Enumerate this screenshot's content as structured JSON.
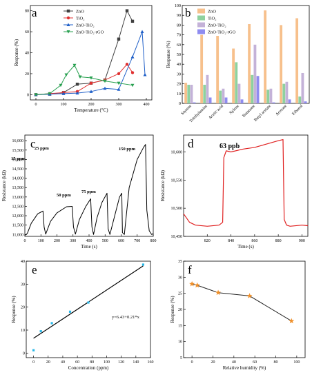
{
  "panels": {
    "a": {
      "letter": "a"
    },
    "b": {
      "letter": "b"
    },
    "c": {
      "letter": "c"
    },
    "d": {
      "letter": "d"
    },
    "e": {
      "letter": "e"
    },
    "f": {
      "letter": "f"
    }
  },
  "chart_data": [
    {
      "id": "a",
      "type": "line",
      "xlabel": "Temperature (°C)",
      "ylabel": "Response (%)",
      "xlim": [
        -20,
        420
      ],
      "ylim": [
        -5,
        85
      ],
      "xticks": [
        0,
        100,
        200,
        300,
        400
      ],
      "yticks": [
        0,
        20,
        40,
        60,
        80
      ],
      "legend_position": "top-left",
      "series": [
        {
          "name": "ZnO",
          "color": "#404040",
          "marker": "square",
          "x": [
            0,
            50,
            100,
            150,
            200,
            250,
            300,
            330,
            350
          ],
          "y": [
            0,
            0.5,
            2,
            10,
            11,
            14,
            53,
            80,
            70
          ]
        },
        {
          "name": "TiO2",
          "color": "#e03030",
          "marker": "circle",
          "x": [
            0,
            50,
            100,
            150,
            200,
            250,
            300,
            330,
            350
          ],
          "y": [
            0,
            1,
            2,
            3,
            11,
            14,
            20,
            29,
            21
          ]
        },
        {
          "name": "ZnO-TiO2",
          "color": "#2060c8",
          "marker": "triangle",
          "x": [
            0,
            50,
            100,
            150,
            200,
            250,
            300,
            350,
            385,
            395
          ],
          "y": [
            0,
            0.5,
            1,
            1.5,
            3,
            6,
            5,
            36,
            60,
            19
          ]
        },
        {
          "name": "ZnO-TiO2-rGO",
          "color": "#28a050",
          "marker": "triangle-down",
          "x": [
            0,
            50,
            90,
            110,
            140,
            160,
            200,
            250,
            300,
            350
          ],
          "y": [
            0,
            1,
            9,
            19,
            28,
            17,
            16,
            13,
            11,
            9
          ]
        }
      ]
    },
    {
      "id": "b",
      "type": "bar",
      "ylabel": "Response (%)",
      "ylim": [
        0,
        100
      ],
      "yticks": [
        0,
        10,
        20,
        30,
        40,
        50,
        60,
        70,
        80,
        90,
        100
      ],
      "legend_position": "top-left",
      "categories": [
        "Styrene",
        "Triethylamine",
        "Acetic acid",
        "Xylene",
        "Butanone",
        "Butyl acetate",
        "Acetone",
        "Ethanol"
      ],
      "series": [
        {
          "name": "ZnO",
          "color": "#f7c08c",
          "values": [
            21,
            70,
            69,
            56,
            81,
            95,
            80,
            87
          ]
        },
        {
          "name": "TiO2",
          "color": "#8fd19e",
          "values": [
            19,
            19,
            13,
            42,
            29,
            14,
            20,
            7
          ]
        },
        {
          "name": "ZnO-TiO2",
          "color": "#c4b2d8",
          "values": [
            19,
            29,
            15,
            20,
            60,
            15,
            22,
            31
          ]
        },
        {
          "name": "ZnO-TiO2-rGO",
          "color": "#8f8cf0",
          "values": [
            1,
            6,
            6,
            4,
            28,
            1,
            4,
            2
          ]
        }
      ]
    },
    {
      "id": "c",
      "type": "line",
      "xlabel": "Time (s)",
      "ylabel": "Resistance (kΩ)",
      "xlim": [
        0,
        800
      ],
      "ylim": [
        10900,
        16300
      ],
      "xticks": [
        0,
        100,
        200,
        300,
        400,
        500,
        600,
        700,
        800
      ],
      "yticks": [
        11000,
        11500,
        12000,
        12500,
        13000,
        13500,
        14000,
        14500,
        15000,
        15500,
        16000
      ],
      "annotations": [
        "15 ppm",
        "25 ppm",
        "50 ppm",
        "75 ppm",
        "150 ppm"
      ],
      "series": [
        {
          "name": "",
          "color": "#000000",
          "x": [
            0,
            15,
            40,
            80,
            113,
            120,
            130,
            160,
            200,
            260,
            295,
            303,
            315,
            340,
            380,
            410,
            418,
            428,
            450,
            480,
            512,
            519,
            530,
            560,
            590,
            604,
            608,
            620,
            650,
            700,
            740,
            752,
            760,
            775,
            790,
            800
          ],
          "y": [
            10950,
            11050,
            11600,
            12100,
            12250,
            11400,
            11020,
            11700,
            12150,
            12480,
            12500,
            11400,
            11020,
            11800,
            12500,
            12900,
            11400,
            11000,
            11900,
            12700,
            13200,
            11300,
            11000,
            12000,
            13000,
            13200,
            11100,
            11000,
            13500,
            15000,
            15650,
            15800,
            12300,
            11200,
            11000,
            11050
          ]
        }
      ]
    },
    {
      "id": "d",
      "type": "line",
      "xlabel": "Time (s)",
      "ylabel": "Resistance (kΩ)",
      "xlim": [
        800,
        905
      ],
      "ylim": [
        10450,
        10630
      ],
      "xticks": [
        820,
        840,
        860,
        880,
        900
      ],
      "yticks": [
        10450,
        10500,
        10550,
        10600
      ],
      "annotations": [
        "63 ppb"
      ],
      "series": [
        {
          "name": "",
          "color": "#e02020",
          "x": [
            800,
            805,
            810,
            820,
            830,
            833,
            834,
            836,
            840,
            850,
            860,
            870,
            880,
            884,
            885,
            887,
            890,
            900,
            905
          ],
          "y": [
            10490,
            10475,
            10470,
            10468,
            10470,
            10475,
            10590,
            10602,
            10600,
            10605,
            10608,
            10614,
            10620,
            10622,
            10480,
            10470,
            10468,
            10470,
            10469
          ]
        }
      ]
    },
    {
      "id": "e",
      "type": "scatter",
      "xlabel": "Concentration (ppm)",
      "ylabel": "Response (%)",
      "xlim": [
        -10,
        160
      ],
      "ylim": [
        -2,
        40
      ],
      "xticks": [
        0,
        20,
        40,
        60,
        80,
        100,
        120,
        140,
        160
      ],
      "yticks": [
        0,
        10,
        20,
        30,
        40
      ],
      "equation": "y=6.43+0.21*x",
      "fit": {
        "intercept": 6.43,
        "slope": 0.21,
        "x_range": [
          0,
          150
        ]
      },
      "series": [
        {
          "name": "",
          "color": "#29b8e8",
          "x": [
            0,
            10,
            25,
            50,
            75,
            150
          ],
          "y": [
            1.2,
            9.5,
            13,
            18,
            22,
            38.5
          ]
        }
      ]
    },
    {
      "id": "f",
      "type": "line",
      "xlabel": "Relative humidity (%)",
      "ylabel": "Response (%)",
      "xlim": [
        -8,
        108
      ],
      "ylim": [
        5,
        35
      ],
      "xticks": [
        0,
        20,
        40,
        60,
        80,
        100
      ],
      "yticks": [
        5,
        10,
        15,
        20,
        25,
        30,
        35
      ],
      "series": [
        {
          "name": "",
          "color": "#222222",
          "marker_color": "#f0902a",
          "marker": "star",
          "x": [
            0,
            5,
            25,
            55,
            95
          ],
          "y": [
            27.9,
            27.5,
            25.2,
            24.2,
            16.4
          ]
        }
      ]
    }
  ]
}
